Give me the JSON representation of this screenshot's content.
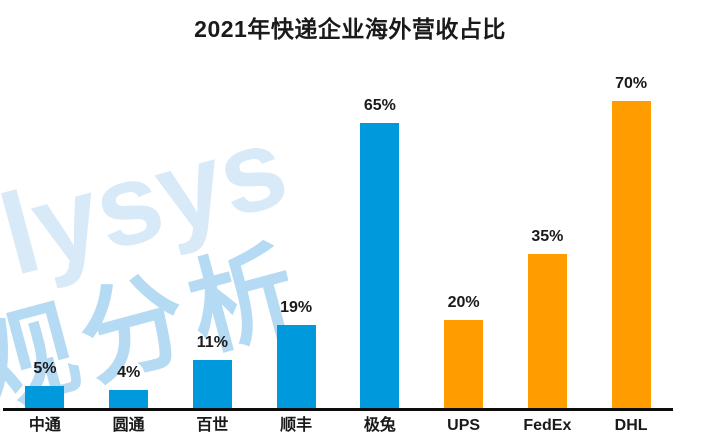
{
  "title": "2021年快递企业海外营收占比",
  "watermark": {
    "en_fragment": "lysys",
    "cn_fragment": "观分析"
  },
  "colors": {
    "bar_blue": "#0099dc",
    "bar_orange": "#ff9c00",
    "axis": "#0d0d0d",
    "text": "#1a1a1a",
    "watermark_en": "#d8e9f8",
    "watermark_cn": "#b5daf3"
  },
  "chart_data": {
    "type": "bar",
    "title": "2021年快递企业海外营收占比",
    "categories": [
      "中通",
      "圆通",
      "百世",
      "顺丰",
      "极兔",
      "UPS",
      "FedEx",
      "DHL"
    ],
    "values": [
      5,
      4,
      11,
      19,
      65,
      20,
      35,
      70
    ],
    "data_labels": [
      "5%",
      "4%",
      "11%",
      "19%",
      "65%",
      "20%",
      "35%",
      "70%"
    ],
    "unit": "%",
    "series_colors": [
      "blue",
      "blue",
      "blue",
      "blue",
      "blue",
      "orange",
      "orange",
      "orange"
    ],
    "xlabel": "",
    "ylabel": "",
    "ylim": [
      0,
      93
    ],
    "grid": false,
    "legend": false,
    "axis_line": "bottom-only"
  }
}
